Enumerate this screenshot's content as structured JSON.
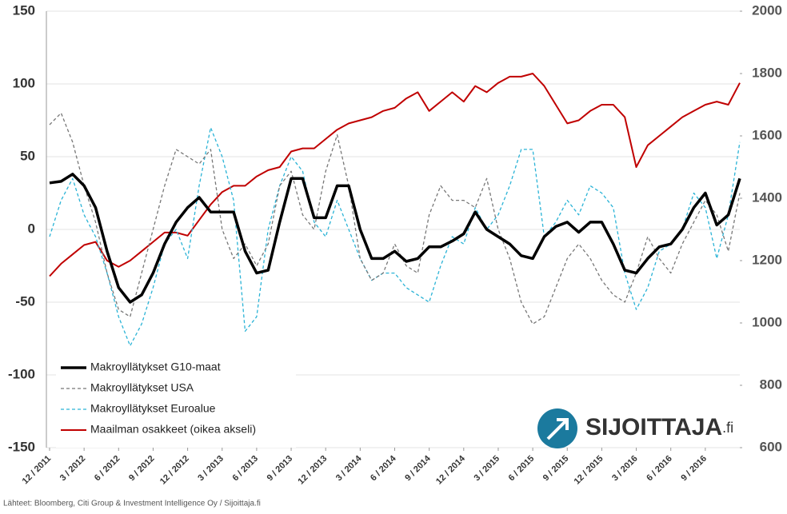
{
  "chart_data": {
    "type": "line",
    "categories": [
      "12 / 2011",
      null,
      null,
      "3 / 2012",
      null,
      null,
      "6 / 2012",
      null,
      null,
      "9 / 2012",
      null,
      null,
      "12 / 2012",
      null,
      null,
      "3 / 2013",
      null,
      null,
      "6 / 2013",
      null,
      null,
      "9 / 2013",
      null,
      null,
      "12 / 2013",
      null,
      null,
      "3 / 2014",
      null,
      null,
      "6 / 2014",
      null,
      null,
      "9 / 2014",
      null,
      null,
      "12 / 2014",
      null,
      null,
      "3 / 2015",
      null,
      null,
      "6 / 2015",
      null,
      null,
      "9 / 2015",
      null,
      null,
      "12 / 2015",
      null,
      null,
      "3 / 2016",
      null,
      null,
      "6 / 2016",
      null,
      null,
      "9 / 2016",
      null,
      null,
      null
    ],
    "series": [
      {
        "name": "Makroyllätykset G10-maat",
        "color": "#000000",
        "dash": false,
        "width": 3.5,
        "values": [
          32,
          33,
          38,
          30,
          15,
          -15,
          -40,
          -50,
          -45,
          -30,
          -10,
          5,
          15,
          22,
          12,
          12,
          12,
          -15,
          -30,
          -28,
          5,
          35,
          35,
          8,
          8,
          30,
          30,
          0,
          -20,
          -20,
          -15,
          -22,
          -20,
          -12,
          -12,
          -8,
          -3,
          12,
          0,
          -5,
          -10,
          -18,
          -20,
          -5,
          2,
          5,
          -2,
          5,
          5,
          -10,
          -28,
          -30,
          -20,
          -12,
          -10,
          0,
          15,
          25,
          3,
          10,
          35
        ]
      },
      {
        "name": "Makroyllätykset USA",
        "color": "#777777",
        "dash": true,
        "width": 1.3,
        "values": [
          72,
          80,
          60,
          30,
          5,
          -30,
          -55,
          -60,
          -30,
          0,
          30,
          55,
          50,
          45,
          55,
          0,
          -20,
          -10,
          -25,
          -10,
          30,
          40,
          10,
          0,
          40,
          65,
          30,
          -20,
          -35,
          -30,
          -10,
          -25,
          -30,
          10,
          30,
          20,
          20,
          15,
          35,
          0,
          -20,
          -50,
          -65,
          -60,
          -40,
          -20,
          -10,
          -20,
          -35,
          -45,
          -50,
          -30,
          -5,
          -20,
          -30,
          -10,
          5,
          20,
          10,
          -15,
          25
        ]
      },
      {
        "name": "Makroyllätykset Euroalue",
        "color": "#2ab3d6",
        "dash": true,
        "width": 1.3,
        "values": [
          -5,
          20,
          35,
          10,
          -5,
          -30,
          -60,
          -80,
          -65,
          -40,
          -10,
          0,
          -20,
          30,
          70,
          50,
          20,
          -70,
          -60,
          0,
          30,
          50,
          40,
          5,
          -5,
          20,
          0,
          -20,
          -35,
          -30,
          -30,
          -40,
          -45,
          -50,
          -25,
          -5,
          -10,
          15,
          0,
          10,
          30,
          55,
          55,
          -5,
          5,
          20,
          10,
          30,
          25,
          15,
          -30,
          -55,
          -40,
          -15,
          -10,
          0,
          25,
          15,
          -20,
          10,
          60
        ]
      },
      {
        "name": "Maailman osakkeet (oikea akseli)",
        "color": "#c00000",
        "dash": false,
        "width": 2,
        "axis": "y2",
        "values": [
          1150,
          1190,
          1220,
          1250,
          1260,
          1200,
          1180,
          1200,
          1230,
          1260,
          1290,
          1290,
          1280,
          1330,
          1380,
          1420,
          1440,
          1440,
          1470,
          1490,
          1500,
          1550,
          1560,
          1560,
          1590,
          1620,
          1640,
          1650,
          1660,
          1680,
          1690,
          1720,
          1740,
          1680,
          1710,
          1740,
          1710,
          1760,
          1740,
          1770,
          1790,
          1790,
          1800,
          1760,
          1700,
          1640,
          1650,
          1680,
          1700,
          1700,
          1660,
          1500,
          1570,
          1600,
          1630,
          1660,
          1680,
          1700,
          1710,
          1700,
          1770
        ]
      }
    ],
    "ylim": [
      -150,
      150
    ],
    "yticks": [
      150,
      100,
      50,
      0,
      -50,
      -100,
      -150
    ],
    "y2lim": [
      600,
      2000
    ],
    "y2ticks": [
      2000,
      1800,
      1600,
      1400,
      1200,
      1000,
      800,
      600
    ],
    "grid": true,
    "legend": "lower left"
  },
  "logo": {
    "text": "SIJOITTAJA",
    "suffix": ".fi"
  },
  "source": "Lähteet: Bloomberg, Citi Group & Investment Intelligence Oy / Sijoittaja.fi"
}
